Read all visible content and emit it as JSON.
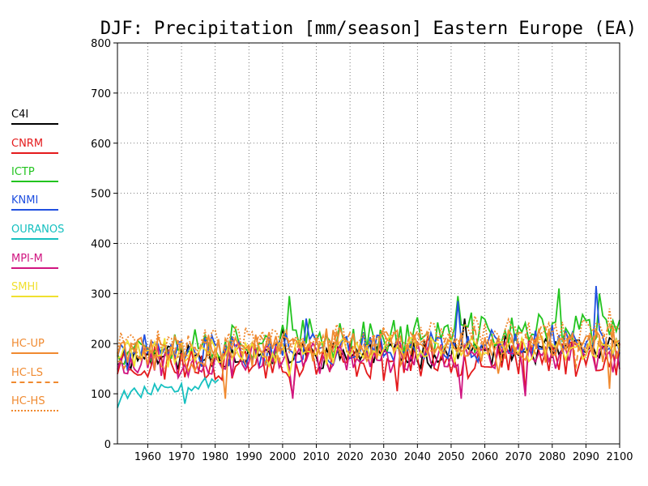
{
  "chart_data": {
    "type": "line",
    "title": "DJF: Precipitation [mm/season] Eastern Europe (EA)",
    "xlabel": "",
    "ylabel": "",
    "xlim": [
      1951,
      2100
    ],
    "ylim": [
      0,
      800
    ],
    "x_ticks": [
      "1960",
      "1970",
      "1980",
      "1990",
      "2000",
      "2010",
      "2020",
      "2030",
      "2040",
      "2050",
      "2060",
      "2070",
      "2080",
      "2090",
      "2100"
    ],
    "y_ticks": [
      "0",
      "100",
      "200",
      "300",
      "400",
      "500",
      "600",
      "700",
      "800"
    ],
    "grid": true,
    "legend_position": "left-outside",
    "series": [
      {
        "name": "C4I",
        "color": "#000000",
        "style": "solid",
        "years": [
          1951,
          2100
        ],
        "baseline": [
          175,
          185
        ],
        "amplitude": 25,
        "seed": 11,
        "peaks": [
          [
            2000,
            230
          ],
          [
            2054,
            250
          ]
        ]
      },
      {
        "name": "CNRM",
        "color": "#e41a1c",
        "style": "solid",
        "years": [
          1951,
          2100
        ],
        "baseline": [
          160,
          175
        ],
        "amplitude": 35,
        "seed": 23,
        "peaks": [
          [
            2003,
            95
          ],
          [
            2034,
            105
          ],
          [
            2072,
            100
          ]
        ]
      },
      {
        "name": "ICTP",
        "color": "#22c41f",
        "style": "solid",
        "years": [
          1951,
          2100
        ],
        "baseline": [
          195,
          230
        ],
        "amplitude": 35,
        "seed": 37,
        "peaks": [
          [
            2002,
            295
          ],
          [
            2052,
            295
          ],
          [
            2082,
            310
          ],
          [
            2094,
            300
          ]
        ]
      },
      {
        "name": "KNMI",
        "color": "#2050e0",
        "style": "solid",
        "years": [
          1951,
          2100
        ],
        "baseline": [
          180,
          205
        ],
        "amplitude": 30,
        "seed": 41,
        "peaks": [
          [
            2007,
            250
          ],
          [
            2052,
            285
          ],
          [
            2093,
            315
          ]
        ]
      },
      {
        "name": "OURANOS",
        "color": "#15c0c0",
        "style": "solid",
        "years": [
          1951,
          1981
        ],
        "baseline": [
          100,
          130
        ],
        "amplitude": 15,
        "seed": 53,
        "peaks": [
          [
            1951,
            72
          ],
          [
            1971,
            80
          ]
        ]
      },
      {
        "name": "MPI-M",
        "color": "#d01580",
        "style": "solid",
        "years": [
          1951,
          2100
        ],
        "baseline": [
          165,
          180
        ],
        "amplitude": 30,
        "seed": 67,
        "peaks": [
          [
            2003,
            90
          ],
          [
            2053,
            90
          ],
          [
            2072,
            95
          ]
        ]
      },
      {
        "name": "SMHI",
        "color": "#f0e030",
        "style": "solid",
        "years": [
          1951,
          2100
        ],
        "baseline": [
          180,
          195
        ],
        "amplitude": 25,
        "seed": 71,
        "peaks": [
          [
            2002,
            135
          ]
        ]
      },
      {
        "name": "HC-UP",
        "color": "#f08a30",
        "style": "solid",
        "years": [
          1951,
          2100
        ],
        "baseline": [
          185,
          205
        ],
        "amplitude": 35,
        "seed": 83,
        "peaks": [
          [
            1983,
            90
          ],
          [
            2064,
            140
          ],
          [
            2097,
            110
          ]
        ]
      },
      {
        "name": "HC-LS",
        "color": "#f08a30",
        "style": "dashed",
        "years": [
          1951,
          2100
        ],
        "baseline": [
          185,
          205
        ],
        "amplitude": 30,
        "seed": 97,
        "peaks": [
          [
            2087,
            150
          ]
        ]
      },
      {
        "name": "HC-HS",
        "color": "#f08a30",
        "style": "dotted",
        "years": [
          1951,
          2100
        ],
        "baseline": [
          195,
          225
        ],
        "amplitude": 30,
        "seed": 101,
        "peaks": [
          [
            2057,
            255
          ],
          [
            2097,
            270
          ]
        ]
      }
    ]
  }
}
